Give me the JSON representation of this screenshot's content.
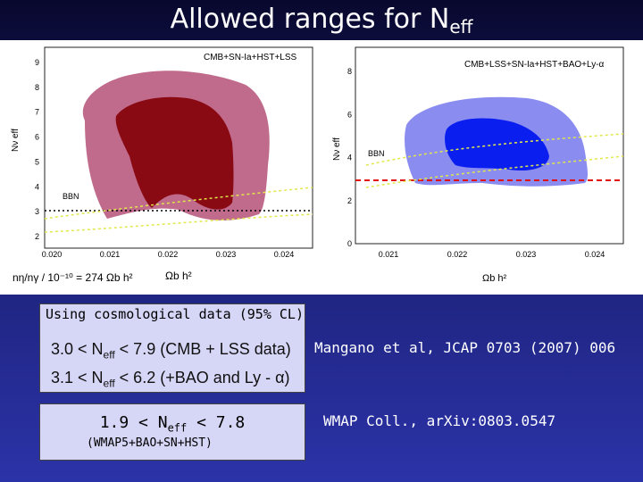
{
  "title": {
    "text": "Allowed ranges for N",
    "sub": "eff"
  },
  "left_plot": {
    "legend": "CMB+SN-Ia+HST+LSS",
    "bbn": "BBN",
    "ylabel": "Nν eff",
    "yticks": [
      "2",
      "3",
      "4",
      "5",
      "6",
      "7",
      "8",
      "9"
    ],
    "xticks": [
      "0.020",
      "0.021",
      "0.022",
      "0.023",
      "0.024"
    ],
    "formula": "nη/nγ / 10⁻¹⁰ = 274 Ωb h²",
    "xlabel": "Ωb h²"
  },
  "right_plot": {
    "legend": "CMB+LSS+SN-Ia+HST+BAO+Ly-α",
    "bbn": "BBN",
    "ylabel": "Nν eff",
    "yticks": [
      "0",
      "2",
      "4",
      "6",
      "8"
    ],
    "xticks": [
      "0.021",
      "0.022",
      "0.023",
      "0.024"
    ],
    "xlabel": "Ωb h²"
  },
  "box1": {
    "header": "Using cosmological data (95% CL)",
    "line1_a": "3.0 < N",
    "line1_sub": "eff",
    "line1_b": " < 7.9   (CMB + LSS data)",
    "line2_a": "3.1 <  N",
    "line2_sub": "eff",
    "line2_b": " < 6.2   (+BAO and Ly - α)"
  },
  "ref1": "Mangano et al, JCAP 0703 (2007) 006",
  "box2": {
    "line_a": "1.9 < N",
    "line_sub": "eff",
    "line_b": " < 7.8",
    "sub": "(WMAP5+BAO+SN+HST)"
  },
  "ref2": "WMAP Coll., arXiv:0803.0547"
}
